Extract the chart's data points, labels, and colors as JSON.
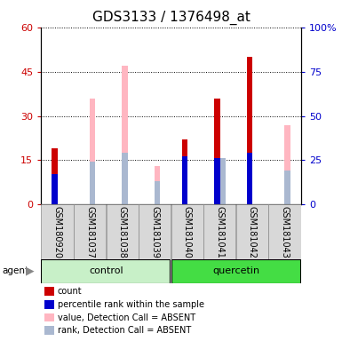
{
  "title": "GDS3133 / 1376498_at",
  "samples": [
    "GSM180920",
    "GSM181037",
    "GSM181038",
    "GSM181039",
    "GSM181040",
    "GSM181041",
    "GSM181042",
    "GSM181043"
  ],
  "count_values": [
    19,
    0,
    0,
    0,
    22,
    36,
    50,
    0
  ],
  "percentile_values": [
    17,
    0,
    0,
    0,
    27,
    26,
    29,
    0
  ],
  "absent_value_values": [
    0,
    36,
    47,
    13,
    0,
    0,
    0,
    27
  ],
  "absent_rank_values": [
    0,
    24,
    29,
    13,
    0,
    26,
    0,
    19
  ],
  "ylim_left": [
    0,
    60
  ],
  "ylim_right": [
    0,
    100
  ],
  "yticks_left": [
    0,
    15,
    30,
    45,
    60
  ],
  "ytick_labels_left": [
    "0",
    "15",
    "30",
    "45",
    "60"
  ],
  "yticks_right": [
    0,
    25,
    50,
    75,
    100
  ],
  "ytick_labels_right": [
    "0",
    "25",
    "50",
    "75",
    "100%"
  ],
  "count_color": "#cc0000",
  "percentile_color": "#0000cc",
  "absent_value_color": "#ffb6c1",
  "absent_rank_color": "#aab8d0",
  "bar_width": 0.18,
  "bg_color": "#d8d8d8",
  "control_color": "#c8f0c8",
  "quercetin_color": "#44dd44",
  "axis_color_left": "#cc0000",
  "axis_color_right": "#0000cc",
  "title_fontsize": 11,
  "tick_fontsize": 8,
  "sample_fontsize": 7
}
